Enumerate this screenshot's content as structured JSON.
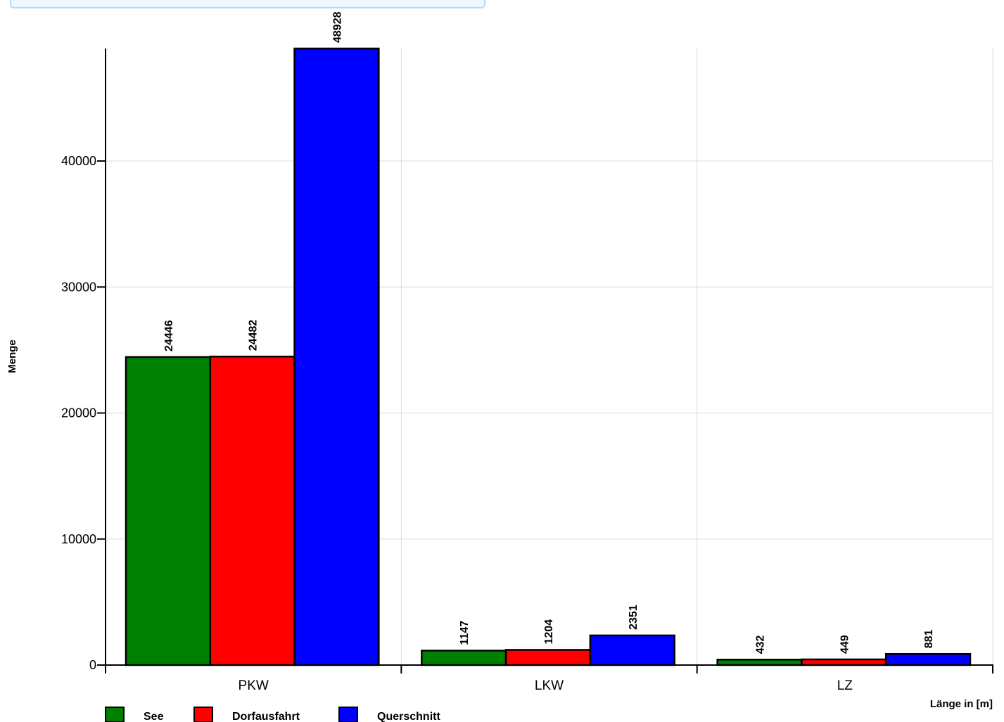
{
  "chart_data": {
    "type": "bar",
    "title": "",
    "xlabel": "Länge in [m]",
    "ylabel": "Menge",
    "ylim": [
      0,
      48928
    ],
    "yticks": [
      0,
      10000,
      20000,
      30000,
      40000
    ],
    "ytick_labels": [
      "0",
      "10000",
      "20000",
      "30000",
      "40000"
    ],
    "categories": [
      "PKW",
      "LKW",
      "LZ"
    ],
    "series": [
      {
        "name": "See",
        "color": "#008000",
        "values": [
          24446,
          1147,
          432
        ],
        "labels": [
          "24446",
          "1147",
          "432"
        ]
      },
      {
        "name": "Dorfausfahrt",
        "color": "#ff0000",
        "values": [
          24482,
          1204,
          449
        ],
        "labels": [
          "24482",
          "1204",
          "449"
        ]
      },
      {
        "name": "Querschnitt",
        "color": "#0000ff",
        "values": [
          48928,
          2351,
          881
        ],
        "labels": [
          "48928",
          "2351",
          "881"
        ]
      }
    ],
    "grid": true,
    "legend_position": "bottom-left"
  }
}
